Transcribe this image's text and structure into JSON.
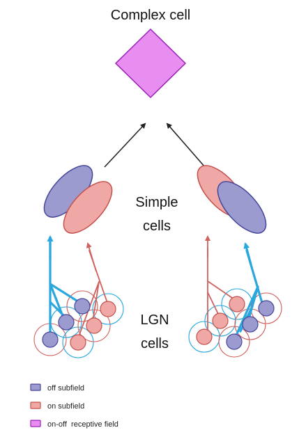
{
  "title": "Complex cell",
  "labels": {
    "simple_line1": "Simple",
    "simple_line2": "cells",
    "lgn_line1": "LGN",
    "lgn_line2": "cells"
  },
  "legend": [
    {
      "label": "off subfield",
      "color": "#9b9bd0",
      "border": "#45459a"
    },
    {
      "label": "on subfield",
      "color": "#f0a8a6",
      "border": "#c4504c"
    },
    {
      "label": "on-off  receptive field",
      "color": "#e78ef0",
      "border": "#9a1fb8"
    }
  ],
  "colors": {
    "off_fill": "#9b9bd0",
    "off_stroke": "#45459a",
    "on_fill": "#f0a8a6",
    "on_stroke": "#c4504c",
    "complex_fill": "#e78ef0",
    "complex_stroke": "#9a1fb8",
    "blue_line": "#2aa8dd",
    "red_line": "#d0605c",
    "arrow": "#222222"
  }
}
